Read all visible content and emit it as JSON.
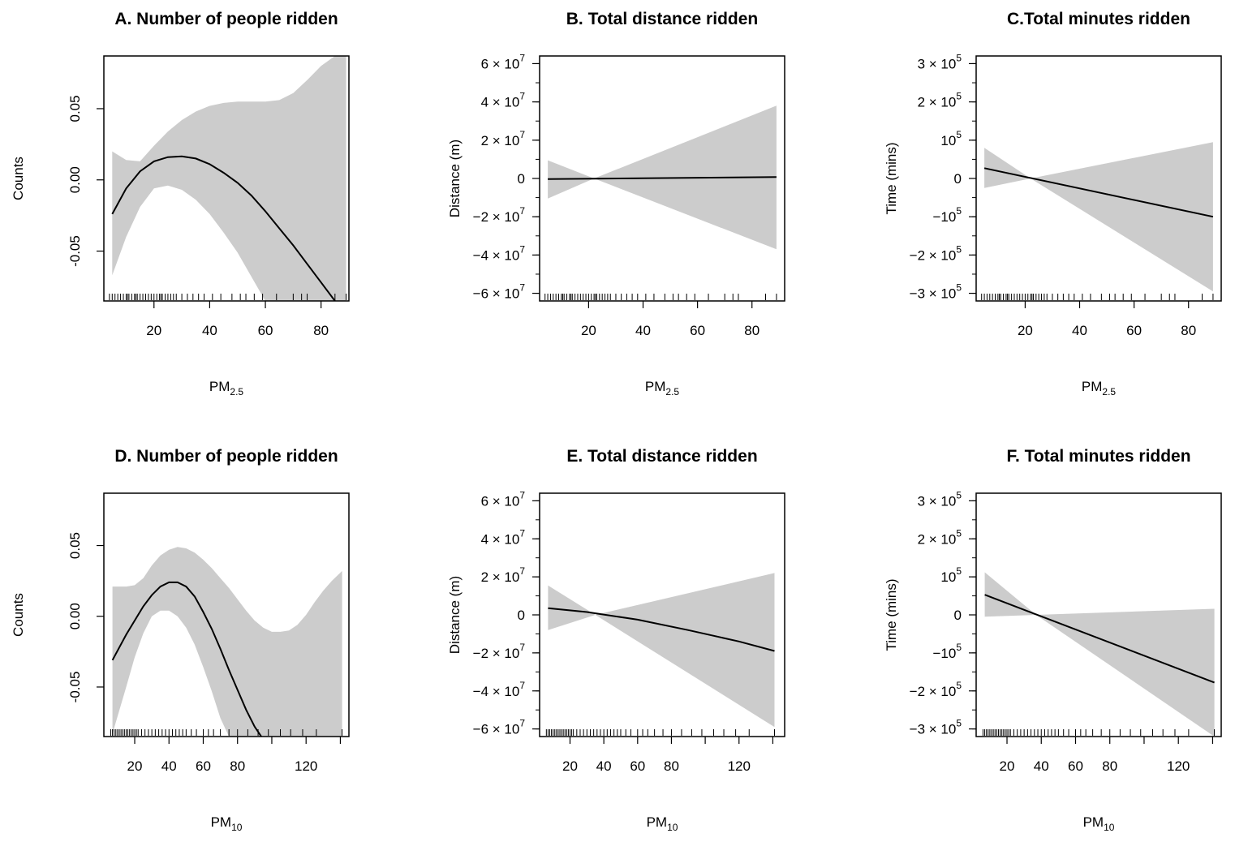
{
  "chart_data": [
    {
      "type": "line",
      "id": "A",
      "title": "A. Number of people ridden",
      "ylabel": "Counts",
      "xlabel_main": "PM",
      "xlabel_sub": "2.5",
      "xlim": [
        2,
        90
      ],
      "ylim": [
        -0.085,
        0.087
      ],
      "xticks": [
        {
          "v": 20,
          "label": "20"
        },
        {
          "v": 40,
          "label": "40"
        },
        {
          "v": 60,
          "label": "60"
        },
        {
          "v": 80,
          "label": "80"
        }
      ],
      "yticks": [
        {
          "v": 0.05,
          "label": "0.05"
        },
        {
          "v": 0.0,
          "label": "0.00"
        },
        {
          "v": -0.05,
          "label": "-0.05"
        }
      ],
      "ytick_rotated": true,
      "fit_x": [
        5,
        10,
        15,
        20,
        25,
        30,
        35,
        40,
        45,
        50,
        55,
        60,
        65,
        70,
        75,
        80,
        85
      ],
      "fit_y": [
        -0.024,
        -0.006,
        0.006,
        0.013,
        0.016,
        0.0165,
        0.015,
        0.011,
        0.005,
        -0.002,
        -0.011,
        -0.022,
        -0.034,
        -0.046,
        -0.059,
        -0.072,
        -0.085
      ],
      "band_x": [
        5,
        10,
        15,
        20,
        25,
        30,
        35,
        40,
        45,
        50,
        55,
        60,
        65,
        70,
        75,
        80,
        85,
        89
      ],
      "band_upper": [
        0.02,
        0.014,
        0.013,
        0.024,
        0.034,
        0.042,
        0.048,
        0.052,
        0.054,
        0.055,
        0.055,
        0.055,
        0.056,
        0.061,
        0.07,
        0.08,
        0.087,
        0.087
      ],
      "band_lower": [
        -0.067,
        -0.04,
        -0.019,
        -0.006,
        -0.004,
        -0.007,
        -0.014,
        -0.024,
        -0.037,
        -0.051,
        -0.068,
        -0.085,
        -0.085,
        -0.085,
        -0.085,
        -0.085,
        -0.085,
        -0.085
      ],
      "rug": [
        4,
        5,
        6,
        7,
        8,
        9,
        10,
        10.5,
        11,
        12,
        13,
        13.5,
        14,
        15,
        16,
        17,
        18,
        19,
        20,
        21,
        22,
        22.5,
        23,
        24,
        25,
        26,
        27,
        28,
        30,
        32,
        34,
        36,
        38,
        41,
        44,
        48,
        51,
        53,
        56,
        59,
        64,
        70,
        73,
        75,
        85,
        89
      ]
    },
    {
      "type": "line",
      "id": "B",
      "title": "B. Total distance ridden",
      "ylabel": "Distance (m)",
      "xlabel_main": "PM",
      "xlabel_sub": "2.5",
      "xlim": [
        2,
        92
      ],
      "ylim": [
        -64000000,
        64000000
      ],
      "xticks": [
        {
          "v": 20,
          "label": "20"
        },
        {
          "v": 40,
          "label": "40"
        },
        {
          "v": 60,
          "label": "60"
        },
        {
          "v": 80,
          "label": "80"
        }
      ],
      "yticks": [
        {
          "v": 60000000,
          "label": "6 × 10",
          "exp": "7"
        },
        {
          "v": 40000000,
          "label": "4 × 10",
          "exp": "7"
        },
        {
          "v": 20000000,
          "label": "2 × 10",
          "exp": "7"
        },
        {
          "v": 0,
          "label": "0"
        },
        {
          "v": -20000000,
          "label": "−2 × 10",
          "exp": "7"
        },
        {
          "v": -40000000,
          "label": "−4 × 10",
          "exp": "7"
        },
        {
          "v": -60000000,
          "label": "−6 × 10",
          "exp": "7"
        }
      ],
      "yminor": 10000000,
      "fit_x": [
        5,
        89
      ],
      "fit_y": [
        -300000,
        700000
      ],
      "band_x": [
        5,
        22,
        89
      ],
      "band_upper": [
        9500000,
        0,
        38000000
      ],
      "band_lower": [
        -10500000,
        0,
        -37000000
      ],
      "rug": [
        4,
        5,
        6,
        7,
        8,
        9,
        10,
        10.5,
        11,
        12,
        13,
        13.5,
        14,
        15,
        16,
        17,
        18,
        19,
        20,
        21,
        22,
        22.5,
        23,
        24,
        25,
        26,
        27,
        28,
        30,
        32,
        34,
        36,
        38,
        41,
        44,
        48,
        51,
        53,
        56,
        59,
        64,
        70,
        73,
        75,
        85,
        89
      ]
    },
    {
      "type": "line",
      "id": "C",
      "title": "C.Total minutes ridden",
      "ylabel": "Time (mins)",
      "xlabel_main": "PM",
      "xlabel_sub": "2.5",
      "xlim": [
        2,
        92
      ],
      "ylim": [
        -320000,
        320000
      ],
      "xticks": [
        {
          "v": 20,
          "label": "20"
        },
        {
          "v": 40,
          "label": "40"
        },
        {
          "v": 60,
          "label": "60"
        },
        {
          "v": 80,
          "label": "80"
        }
      ],
      "yticks": [
        {
          "v": 300000,
          "label": "3 × 10",
          "exp": "5"
        },
        {
          "v": 200000,
          "label": "2 × 10",
          "exp": "5"
        },
        {
          "v": 100000,
          "label": "10",
          "exp": "5"
        },
        {
          "v": 0,
          "label": "0"
        },
        {
          "v": -100000,
          "label": "−10",
          "exp": "5"
        },
        {
          "v": -200000,
          "label": "−2 × 10",
          "exp": "5"
        },
        {
          "v": -300000,
          "label": "−3 × 10",
          "exp": "5"
        }
      ],
      "yminor": 50000,
      "fit_x": [
        5,
        89
      ],
      "fit_y": [
        27000,
        -100000
      ],
      "band_x": [
        5,
        22,
        89
      ],
      "band_upper": [
        80000,
        0,
        95000
      ],
      "band_lower": [
        -25000,
        0,
        -295000
      ],
      "rug": [
        4,
        5,
        6,
        7,
        8,
        9,
        10,
        10.5,
        11,
        12,
        13,
        13.5,
        14,
        15,
        16,
        17,
        18,
        19,
        20,
        21,
        22,
        22.5,
        23,
        24,
        25,
        26,
        27,
        28,
        30,
        32,
        34,
        36,
        38,
        41,
        44,
        48,
        51,
        53,
        56,
        59,
        64,
        70,
        73,
        75,
        85,
        89
      ]
    },
    {
      "type": "line",
      "id": "D",
      "title": "D. Number of people ridden",
      "ylabel": "Counts",
      "xlabel_main": "PM",
      "xlabel_sub": "10",
      "xlim": [
        2,
        145
      ],
      "ylim": [
        -0.085,
        0.087
      ],
      "xticks": [
        {
          "v": 20,
          "label": "20"
        },
        {
          "v": 40,
          "label": "40"
        },
        {
          "v": 60,
          "label": "60"
        },
        {
          "v": 80,
          "label": "80"
        },
        {
          "v": 100,
          "label": ""
        },
        {
          "v": 120,
          "label": "120"
        },
        {
          "v": 140,
          "label": ""
        }
      ],
      "yticks": [
        {
          "v": 0.05,
          "label": "0.05"
        },
        {
          "v": 0.0,
          "label": "0.00"
        },
        {
          "v": -0.05,
          "label": "-0.05"
        }
      ],
      "ytick_rotated": true,
      "fit_x": [
        7,
        15,
        20,
        25,
        30,
        35,
        40,
        45,
        50,
        55,
        60,
        65,
        70,
        75,
        80,
        85,
        90,
        95
      ],
      "fit_y": [
        -0.031,
        -0.013,
        -0.003,
        0.007,
        0.015,
        0.021,
        0.024,
        0.024,
        0.021,
        0.014,
        0.003,
        -0.009,
        -0.023,
        -0.038,
        -0.052,
        -0.066,
        -0.078,
        -0.087
      ],
      "band_x": [
        7,
        15,
        20,
        25,
        30,
        35,
        40,
        45,
        50,
        55,
        60,
        65,
        70,
        75,
        80,
        85,
        90,
        95,
        100,
        105,
        110,
        115,
        120,
        125,
        130,
        135,
        141
      ],
      "band_upper": [
        0.021,
        0.021,
        0.022,
        0.027,
        0.036,
        0.043,
        0.047,
        0.049,
        0.048,
        0.045,
        0.04,
        0.034,
        0.027,
        0.02,
        0.012,
        0.004,
        -0.003,
        -0.008,
        -0.011,
        -0.011,
        -0.01,
        -0.006,
        0.001,
        0.01,
        0.018,
        0.025,
        0.032
      ],
      "band_lower": [
        -0.083,
        -0.05,
        -0.029,
        -0.012,
        0.0,
        0.004,
        0.004,
        0.0,
        -0.008,
        -0.02,
        -0.036,
        -0.053,
        -0.072,
        -0.085,
        -0.085,
        -0.085,
        -0.085,
        -0.085,
        -0.085,
        -0.085,
        -0.085,
        -0.085,
        -0.085,
        -0.085,
        -0.085,
        -0.085,
        -0.085
      ],
      "rug": [
        6,
        7,
        8,
        9,
        10,
        11,
        12,
        13,
        14,
        15,
        16,
        17,
        18,
        19,
        20,
        21,
        22,
        24,
        26,
        28,
        30,
        32,
        34,
        36,
        38,
        40,
        42,
        44,
        46,
        48,
        50,
        53,
        56,
        60,
        63,
        66,
        70,
        75,
        80,
        86,
        92,
        98,
        105,
        111,
        118,
        126,
        141
      ]
    },
    {
      "type": "line",
      "id": "E",
      "title": "E. Total distance ridden",
      "ylabel": "Distance (m)",
      "xlabel_main": "PM",
      "xlabel_sub": "10",
      "xlim": [
        2,
        147
      ],
      "ylim": [
        -64000000,
        64000000
      ],
      "xticks": [
        {
          "v": 20,
          "label": "20"
        },
        {
          "v": 40,
          "label": "40"
        },
        {
          "v": 60,
          "label": "60"
        },
        {
          "v": 80,
          "label": "80"
        },
        {
          "v": 100,
          "label": ""
        },
        {
          "v": 120,
          "label": "120"
        },
        {
          "v": 140,
          "label": ""
        }
      ],
      "yticks": [
        {
          "v": 60000000,
          "label": "6 × 10",
          "exp": "7"
        },
        {
          "v": 40000000,
          "label": "4 × 10",
          "exp": "7"
        },
        {
          "v": 20000000,
          "label": "2 × 10",
          "exp": "7"
        },
        {
          "v": 0,
          "label": "0"
        },
        {
          "v": -20000000,
          "label": "−2 × 10",
          "exp": "7"
        },
        {
          "v": -40000000,
          "label": "−4 × 10",
          "exp": "7"
        },
        {
          "v": -60000000,
          "label": "−6 × 10",
          "exp": "7"
        }
      ],
      "yminor": 10000000,
      "fit_x": [
        7,
        30,
        60,
        90,
        120,
        141
      ],
      "fit_y": [
        3500000,
        1500000,
        -2500000,
        -8000000,
        -14000000,
        -19000000
      ],
      "band_x": [
        7,
        35,
        141
      ],
      "band_upper": [
        15500000,
        0,
        22000000
      ],
      "band_lower": [
        -8000000,
        0,
        -59000000
      ],
      "rug": [
        6,
        7,
        8,
        9,
        10,
        11,
        12,
        13,
        14,
        15,
        16,
        17,
        18,
        19,
        20,
        21,
        22,
        24,
        26,
        28,
        30,
        32,
        34,
        36,
        38,
        40,
        42,
        44,
        46,
        48,
        50,
        53,
        56,
        60,
        63,
        66,
        70,
        75,
        80,
        86,
        92,
        98,
        105,
        111,
        118,
        126,
        141
      ]
    },
    {
      "type": "line",
      "id": "F",
      "title": "F. Total minutes ridden",
      "ylabel": "Time (mins)",
      "xlabel_main": "PM",
      "xlabel_sub": "10",
      "xlim": [
        2,
        145
      ],
      "ylim": [
        -320000,
        320000
      ],
      "xticks": [
        {
          "v": 20,
          "label": "20"
        },
        {
          "v": 40,
          "label": "40"
        },
        {
          "v": 60,
          "label": "60"
        },
        {
          "v": 80,
          "label": "80"
        },
        {
          "v": 100,
          "label": ""
        },
        {
          "v": 120,
          "label": "120"
        },
        {
          "v": 140,
          "label": ""
        }
      ],
      "yticks": [
        {
          "v": 300000,
          "label": "3 × 10",
          "exp": "5"
        },
        {
          "v": 200000,
          "label": "2 × 10",
          "exp": "5"
        },
        {
          "v": 100000,
          "label": "10",
          "exp": "5"
        },
        {
          "v": 0,
          "label": "0"
        },
        {
          "v": -100000,
          "label": "−10",
          "exp": "5"
        },
        {
          "v": -200000,
          "label": "−2 × 10",
          "exp": "5"
        },
        {
          "v": -300000,
          "label": "−3 × 10",
          "exp": "5"
        }
      ],
      "yminor": 50000,
      "fit_x": [
        7,
        141
      ],
      "fit_y": [
        53000,
        -178000
      ],
      "band_x": [
        7,
        37,
        141
      ],
      "band_upper": [
        112000,
        0,
        16000
      ],
      "band_lower": [
        -5000,
        0,
        -320000
      ],
      "rug": [
        6,
        7,
        8,
        9,
        10,
        11,
        12,
        13,
        14,
        15,
        16,
        17,
        18,
        19,
        20,
        21,
        22,
        24,
        26,
        28,
        30,
        32,
        34,
        36,
        38,
        40,
        42,
        44,
        46,
        48,
        50,
        53,
        56,
        60,
        63,
        66,
        70,
        75,
        80,
        86,
        92,
        98,
        105,
        111,
        118,
        126,
        141
      ]
    }
  ]
}
